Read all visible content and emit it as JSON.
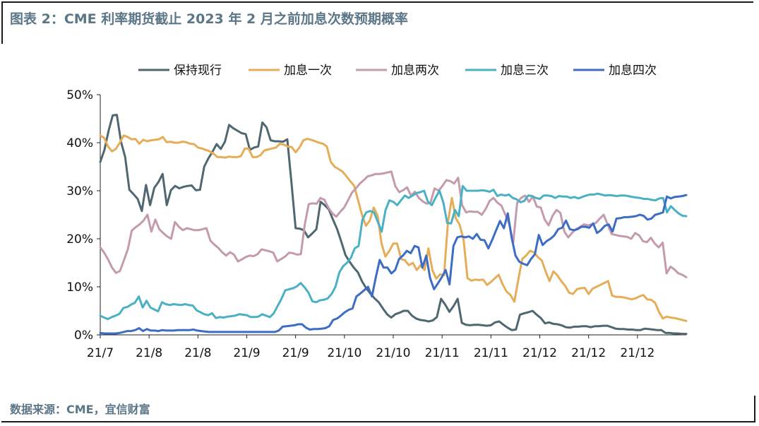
{
  "header": {
    "title": "图表 2：CME 利率期货截止 2023 年 2 月之前加息次数预期概率"
  },
  "footer": {
    "source": "数据来源：CME，宜信财富"
  },
  "chart_data": {
    "type": "line",
    "title": "",
    "xlabel": "",
    "ylabel": "",
    "ylim": [
      0,
      0.5
    ],
    "yticks": [
      "0%",
      "10%",
      "20%",
      "30%",
      "40%",
      "50%"
    ],
    "xticks": [
      "21/7",
      "21/8",
      "21/8",
      "21/9",
      "21/9",
      "21/10",
      "21/10",
      "21/11",
      "21/11",
      "21/12",
      "21/12",
      "21/12"
    ],
    "legend_position": "top",
    "grid": false,
    "series": [
      {
        "name": "保持现行",
        "color": "#4f6770",
        "values": [
          0.36,
          0.385,
          0.425,
          0.457,
          0.458,
          0.402,
          0.37,
          0.302,
          0.293,
          0.283,
          0.258,
          0.312,
          0.27,
          0.306,
          0.318,
          0.335,
          0.27,
          0.301,
          0.31,
          0.305,
          0.308,
          0.31,
          0.311,
          0.301,
          0.302,
          0.35,
          0.367,
          0.381,
          0.397,
          0.387,
          0.402,
          0.437,
          0.43,
          0.425,
          0.42,
          0.418,
          0.385,
          0.39,
          0.392,
          0.442,
          0.432,
          0.405,
          0.403,
          0.403,
          0.402,
          0.407,
          0.317,
          0.222,
          0.221,
          0.218,
          0.203,
          0.211,
          0.22,
          0.277,
          0.27,
          0.261,
          0.24,
          0.22,
          0.194,
          0.166,
          0.152,
          0.14,
          0.13,
          0.111,
          0.097,
          0.086,
          0.076,
          0.068,
          0.055,
          0.043,
          0.036,
          0.043,
          0.046,
          0.05,
          0.05,
          0.04,
          0.034,
          0.031,
          0.03,
          0.028,
          0.03,
          0.037,
          0.075,
          0.063,
          0.048,
          0.06,
          0.075,
          0.025,
          0.021,
          0.02,
          0.021,
          0.021,
          0.02,
          0.019,
          0.02,
          0.026,
          0.028,
          0.021,
          0.015,
          0.01,
          0.011,
          0.042,
          0.045,
          0.047,
          0.05,
          0.042,
          0.035,
          0.024,
          0.026,
          0.023,
          0.022,
          0.02,
          0.016,
          0.015,
          0.017,
          0.017,
          0.018,
          0.018,
          0.016,
          0.018,
          0.018,
          0.019,
          0.019,
          0.016,
          0.013,
          0.012,
          0.012,
          0.011,
          0.011,
          0.01,
          0.01,
          0.013,
          0.012,
          0.011,
          0.01,
          0.01,
          0.004,
          0.004,
          0.003,
          0.003,
          0.002,
          0.002
        ]
      },
      {
        "name": "加息一次",
        "color": "#e6ad58",
        "values": [
          0.415,
          0.41,
          0.392,
          0.382,
          0.387,
          0.4,
          0.415,
          0.412,
          0.407,
          0.408,
          0.398,
          0.406,
          0.403,
          0.405,
          0.406,
          0.407,
          0.412,
          0.401,
          0.402,
          0.4,
          0.4,
          0.402,
          0.401,
          0.398,
          0.397,
          0.39,
          0.388,
          0.385,
          0.382,
          0.377,
          0.37,
          0.37,
          0.369,
          0.371,
          0.37,
          0.37,
          0.372,
          0.388,
          0.387,
          0.37,
          0.37,
          0.374,
          0.384,
          0.386,
          0.388,
          0.39,
          0.398,
          0.396,
          0.392,
          0.391,
          0.38,
          0.39,
          0.405,
          0.408,
          0.406,
          0.403,
          0.4,
          0.398,
          0.392,
          0.36,
          0.35,
          0.345,
          0.34,
          0.33,
          0.32,
          0.31,
          0.28,
          0.25,
          0.227,
          0.238,
          0.265,
          0.248,
          0.19,
          0.163,
          0.175,
          0.19,
          0.19,
          0.158,
          0.155,
          0.145,
          0.15,
          0.135,
          0.145,
          0.135,
          0.18,
          0.135,
          0.117,
          0.126,
          0.124,
          0.235,
          0.285,
          0.243,
          0.229,
          0.198,
          0.118,
          0.113,
          0.115,
          0.114,
          0.115,
          0.104,
          0.11,
          0.118,
          0.125,
          0.105,
          0.09,
          0.083,
          0.069,
          0.115,
          0.158,
          0.165,
          0.175,
          0.172,
          0.162,
          0.155,
          0.132,
          0.112,
          0.132,
          0.124,
          0.112,
          0.102,
          0.088,
          0.085,
          0.095,
          0.097,
          0.098,
          0.085,
          0.096,
          0.1,
          0.104,
          0.108,
          0.112,
          0.082,
          0.079,
          0.079,
          0.078,
          0.076,
          0.074,
          0.076,
          0.08,
          0.083,
          0.074,
          0.073,
          0.067,
          0.048,
          0.034,
          0.038,
          0.036,
          0.035,
          0.033,
          0.031,
          0.029
        ]
      },
      {
        "name": "加息两次",
        "color": "#c49aad",
        "values": [
          0.182,
          0.171,
          0.157,
          0.14,
          0.129,
          0.133,
          0.155,
          0.178,
          0.217,
          0.224,
          0.23,
          0.238,
          0.25,
          0.215,
          0.24,
          0.22,
          0.212,
          0.205,
          0.2,
          0.235,
          0.225,
          0.218,
          0.222,
          0.22,
          0.218,
          0.218,
          0.22,
          0.222,
          0.196,
          0.188,
          0.181,
          0.172,
          0.165,
          0.172,
          0.167,
          0.153,
          0.157,
          0.162,
          0.165,
          0.164,
          0.168,
          0.178,
          0.176,
          0.174,
          0.171,
          0.153,
          0.158,
          0.163,
          0.171,
          0.17,
          0.167,
          0.168,
          0.23,
          0.272,
          0.274,
          0.273,
          0.285,
          0.281,
          0.265,
          0.253,
          0.246,
          0.256,
          0.265,
          0.28,
          0.296,
          0.305,
          0.315,
          0.322,
          0.33,
          0.332,
          0.335,
          0.335,
          0.336,
          0.338,
          0.34,
          0.31,
          0.297,
          0.301,
          0.307,
          0.29,
          0.298,
          0.285,
          0.278,
          0.273,
          0.276,
          0.305,
          0.3,
          0.31,
          0.322,
          0.32,
          0.315,
          0.327,
          0.27,
          0.255,
          0.257,
          0.256,
          0.256,
          0.25,
          0.262,
          0.279,
          0.285,
          0.275,
          0.269,
          0.25,
          0.23,
          0.192,
          0.275,
          0.285,
          0.29,
          0.277,
          0.288,
          0.267,
          0.265,
          0.24,
          0.228,
          0.248,
          0.26,
          0.254,
          0.215,
          0.203,
          0.213,
          0.22,
          0.225,
          0.23,
          0.228,
          0.23,
          0.233,
          0.242,
          0.25,
          0.23,
          0.21,
          0.208,
          0.206,
          0.205,
          0.204,
          0.2,
          0.212,
          0.207,
          0.195,
          0.193,
          0.202,
          0.19,
          0.182,
          0.192,
          0.128,
          0.142,
          0.136,
          0.128,
          0.125,
          0.12
        ]
      },
      {
        "name": "加息三次",
        "color": "#4ab1c4",
        "values": [
          0.04,
          0.036,
          0.033,
          0.037,
          0.04,
          0.044,
          0.056,
          0.058,
          0.063,
          0.067,
          0.08,
          0.057,
          0.071,
          0.057,
          0.053,
          0.049,
          0.068,
          0.064,
          0.062,
          0.064,
          0.063,
          0.062,
          0.064,
          0.062,
          0.061,
          0.051,
          0.047,
          0.043,
          0.041,
          0.045,
          0.035,
          0.037,
          0.036,
          0.038,
          0.039,
          0.04,
          0.043,
          0.042,
          0.041,
          0.037,
          0.037,
          0.038,
          0.043,
          0.04,
          0.037,
          0.045,
          0.06,
          0.075,
          0.093,
          0.095,
          0.097,
          0.101,
          0.108,
          0.099,
          0.088,
          0.07,
          0.068,
          0.072,
          0.073,
          0.076,
          0.085,
          0.1,
          0.13,
          0.143,
          0.15,
          0.16,
          0.18,
          0.185,
          0.24,
          0.255,
          0.258,
          0.255,
          0.235,
          0.215,
          0.26,
          0.28,
          0.277,
          0.27,
          0.28,
          0.29,
          0.285,
          0.29,
          0.295,
          0.297,
          0.3,
          0.277,
          0.27,
          0.286,
          0.3,
          0.275,
          0.233,
          0.232,
          0.26,
          0.247,
          0.31,
          0.3,
          0.3,
          0.3,
          0.3,
          0.301,
          0.3,
          0.298,
          0.302,
          0.289,
          0.292,
          0.29,
          0.292,
          0.285,
          0.282,
          0.276,
          0.279,
          0.29,
          0.289,
          0.285,
          0.283,
          0.29,
          0.29,
          0.289,
          0.285,
          0.289,
          0.288,
          0.288,
          0.285,
          0.287,
          0.284,
          0.287,
          0.29,
          0.292,
          0.292,
          0.294,
          0.292,
          0.29,
          0.291,
          0.29,
          0.289,
          0.29,
          0.29,
          0.289,
          0.287,
          0.286,
          0.285,
          0.283,
          0.283,
          0.281,
          0.28,
          0.284,
          0.285,
          0.255,
          0.268,
          0.26,
          0.253,
          0.248,
          0.247
        ]
      },
      {
        "name": "加息四次",
        "color": "#3c6cc4",
        "values": [
          0.004,
          0.003,
          0.003,
          0.003,
          0.003,
          0.004,
          0.006,
          0.008,
          0.008,
          0.01,
          0.014,
          0.008,
          0.012,
          0.009,
          0.009,
          0.008,
          0.01,
          0.009,
          0.009,
          0.009,
          0.01,
          0.01,
          0.01,
          0.01,
          0.011,
          0.009,
          0.008,
          0.007,
          0.006,
          0.006,
          0.006,
          0.006,
          0.006,
          0.006,
          0.006,
          0.006,
          0.006,
          0.006,
          0.006,
          0.006,
          0.006,
          0.006,
          0.006,
          0.006,
          0.006,
          0.006,
          0.009,
          0.017,
          0.018,
          0.019,
          0.02,
          0.022,
          0.022,
          0.015,
          0.011,
          0.012,
          0.012,
          0.013,
          0.014,
          0.018,
          0.031,
          0.034,
          0.04,
          0.047,
          0.052,
          0.055,
          0.08,
          0.086,
          0.093,
          0.1,
          0.08,
          0.12,
          0.156,
          0.14,
          0.14,
          0.128,
          0.135,
          0.158,
          0.165,
          0.175,
          0.17,
          0.185,
          0.182,
          0.14,
          0.165,
          0.118,
          0.095,
          0.107,
          0.12,
          0.135,
          0.105,
          0.185,
          0.203,
          0.205,
          0.203,
          0.205,
          0.2,
          0.21,
          0.198,
          0.197,
          0.18,
          0.198,
          0.218,
          0.237,
          0.222,
          0.253,
          0.203,
          0.165,
          0.152,
          0.148,
          0.145,
          0.158,
          0.168,
          0.208,
          0.187,
          0.195,
          0.2,
          0.207,
          0.22,
          0.223,
          0.238,
          0.22,
          0.218,
          0.22,
          0.225,
          0.225,
          0.223,
          0.232,
          0.212,
          0.218,
          0.227,
          0.23,
          0.215,
          0.242,
          0.243,
          0.245,
          0.245,
          0.246,
          0.247,
          0.25,
          0.248,
          0.24,
          0.242,
          0.25,
          0.252,
          0.255,
          0.288,
          0.284,
          0.287,
          0.288,
          0.289,
          0.291
        ]
      }
    ]
  }
}
